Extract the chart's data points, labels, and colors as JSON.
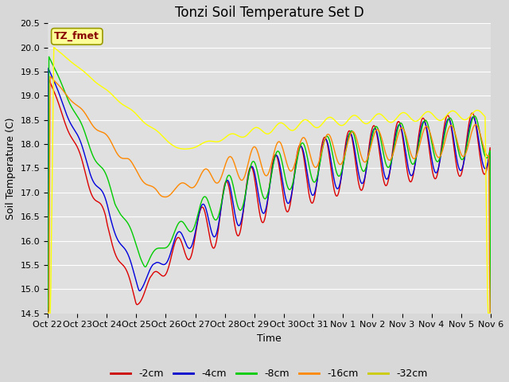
{
  "title": "Tonzi Soil Temperature Set D",
  "xlabel": "Time",
  "ylabel": "Soil Temperature (C)",
  "ylim": [
    14.5,
    20.5
  ],
  "yticks": [
    14.5,
    15.0,
    15.5,
    16.0,
    16.5,
    17.0,
    17.5,
    18.0,
    18.5,
    19.0,
    19.5,
    20.0,
    20.5
  ],
  "xtick_labels": [
    "Oct 22",
    "Oct 23",
    "Oct 24",
    "Oct 25",
    "Oct 26",
    "Oct 27",
    "Oct 28",
    "Oct 29",
    "Oct 30",
    "Oct 31",
    "Nov 1",
    "Nov 2",
    "Nov 3",
    "Nov 4",
    "Nov 5",
    "Nov 6"
  ],
  "legend_labels": [
    "-2cm",
    "-4cm",
    "-8cm",
    "-16cm",
    "-32cm"
  ],
  "legend_colors": [
    "#cc0000",
    "#0000cc",
    "#00cc00",
    "#ff8800",
    "#cccc00"
  ],
  "line_colors": [
    "#dd0000",
    "#0000dd",
    "#00cc00",
    "#ff8800",
    "#ffff00"
  ],
  "annotation_text": "TZ_fmet",
  "annotation_bg": "#ffff99",
  "annotation_fg": "#880000",
  "fig_bg_color": "#d8d8d8",
  "plot_bg_color": "#e0e0e0",
  "title_fontsize": 12,
  "label_fontsize": 9,
  "tick_fontsize": 8
}
